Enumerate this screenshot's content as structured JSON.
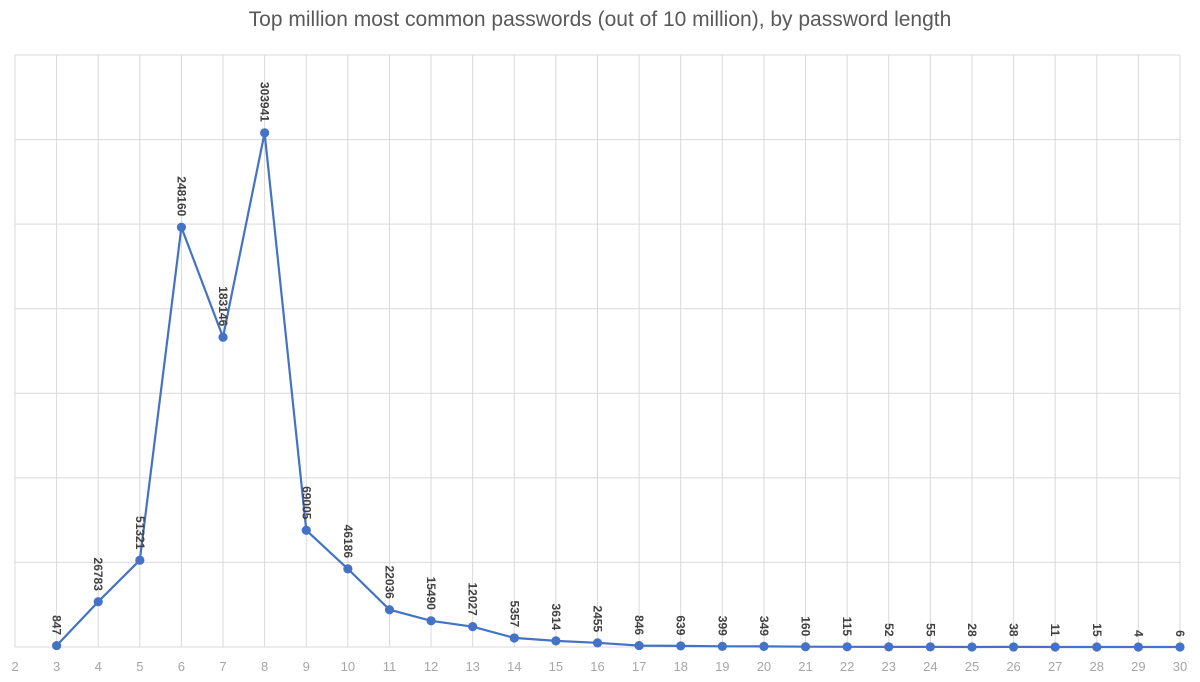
{
  "chart_data": {
    "type": "line",
    "title": "Top million most common passwords (out of 10 million), by password length",
    "xlabel": "",
    "ylabel": "",
    "x": [
      3,
      4,
      5,
      6,
      7,
      8,
      9,
      10,
      11,
      12,
      13,
      14,
      15,
      16,
      17,
      18,
      19,
      20,
      21,
      22,
      23,
      24,
      25,
      26,
      27,
      28,
      29,
      30
    ],
    "x_ticks": [
      "2",
      "3",
      "4",
      "5",
      "6",
      "7",
      "8",
      "9",
      "10",
      "11",
      "12",
      "13",
      "14",
      "15",
      "16",
      "17",
      "18",
      "19",
      "20",
      "21",
      "22",
      "23",
      "24",
      "25",
      "26",
      "27",
      "28",
      "29",
      "30"
    ],
    "xlim": [
      2,
      30
    ],
    "ylim": [
      0,
      350000
    ],
    "y_gridlines": [
      0,
      50000,
      100000,
      150000,
      200000,
      250000,
      300000,
      350000
    ],
    "y_tick_labels_shown": false,
    "series": [
      {
        "values": [
          847,
          26783,
          51321,
          248160,
          183146,
          303941,
          69005,
          46186,
          22036,
          15490,
          12027,
          5357,
          3614,
          2455,
          846,
          639,
          399,
          349,
          160,
          115,
          52,
          55,
          28,
          38,
          11,
          15,
          4,
          6
        ],
        "color": "#4472c4"
      }
    ],
    "data_labels": true,
    "data_label_orientation": "vertical",
    "grid": true,
    "legend": "none"
  }
}
